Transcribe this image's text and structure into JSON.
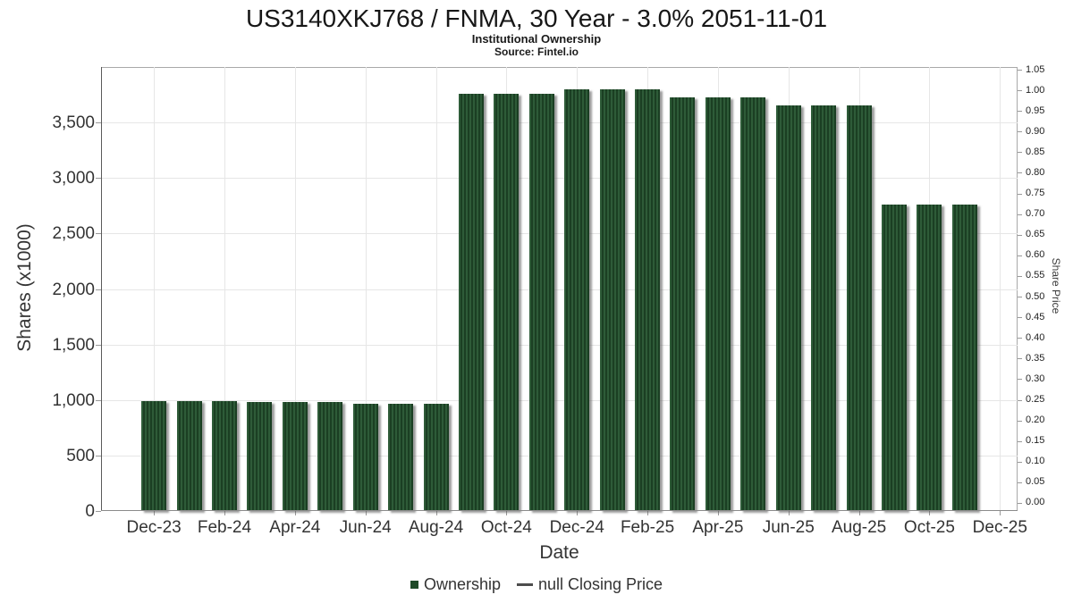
{
  "chart_data": {
    "type": "bar",
    "title": "US3140XKJ768 / FNMA, 30 Year - 3.0% 2051-11-01",
    "subtitle": "Institutional Ownership",
    "source": "Source: Fintel.io",
    "xlabel": "Date",
    "ylabel": "Shares (x1000)",
    "y2label": "Share Price",
    "categories": [
      "Dec-23",
      "Jan-24",
      "Feb-24",
      "Mar-24",
      "Apr-24",
      "May-24",
      "Jun-24",
      "Jul-24",
      "Aug-24",
      "Sep-24",
      "Oct-24",
      "Nov-24",
      "Dec-24",
      "Jan-25",
      "Feb-25",
      "Mar-25",
      "Apr-25",
      "May-25",
      "Jun-25",
      "Jul-25",
      "Aug-25",
      "Sep-25",
      "Oct-25",
      "Nov-25"
    ],
    "series": [
      {
        "name": "Ownership",
        "type": "bar",
        "values": [
          990,
          990,
          990,
          980,
          980,
          980,
          965,
          965,
          965,
          3755,
          3755,
          3755,
          3795,
          3795,
          3795,
          3730,
          3730,
          3730,
          3655,
          3655,
          3655,
          2760,
          2760,
          2760
        ]
      },
      {
        "name": "null Closing Price",
        "type": "line",
        "values": []
      }
    ],
    "x_tick_labels": [
      "Dec-23",
      "Feb-24",
      "Apr-24",
      "Jun-24",
      "Aug-24",
      "Oct-24",
      "Dec-24",
      "Feb-25",
      "Apr-25",
      "Jun-25",
      "Aug-25",
      "Oct-25",
      "Dec-25"
    ],
    "x_tick_month_offsets": [
      0,
      2,
      4,
      6,
      8,
      10,
      12,
      14,
      16,
      18,
      20,
      22,
      24
    ],
    "ylim": [
      0,
      4000
    ],
    "y_tick_values": [
      0,
      500,
      1000,
      1500,
      2000,
      2500,
      3000,
      3500
    ],
    "y_tick_labels": [
      "0",
      "500",
      "1,000",
      "1,500",
      "2,000",
      "2,500",
      "3,000",
      "3,500"
    ],
    "y2lim": [
      -0.0195,
      1.0565
    ],
    "y2_tick_labels": [
      "0.00",
      "0.05",
      "0.10",
      "0.15",
      "0.20",
      "0.25",
      "0.30",
      "0.35",
      "0.40",
      "0.45",
      "0.50",
      "0.55",
      "0.60",
      "0.65",
      "0.70",
      "0.75",
      "0.80",
      "0.85",
      "0.90",
      "0.95",
      "1.00",
      "1.05"
    ],
    "grid": true,
    "legend": {
      "position": "bottom",
      "items": [
        {
          "label": "Ownership",
          "marker": "square",
          "color": "#1e4a28"
        },
        {
          "label": "null Closing Price",
          "marker": "line",
          "color": "#4d4d4d"
        }
      ]
    },
    "colors": {
      "bar_stripe_light": "#2e5b38",
      "bar_stripe_dark": "#1b3f23",
      "gridline": "#e6e6e6",
      "plot_border": "#a9a9a9",
      "text": "#333333"
    }
  }
}
